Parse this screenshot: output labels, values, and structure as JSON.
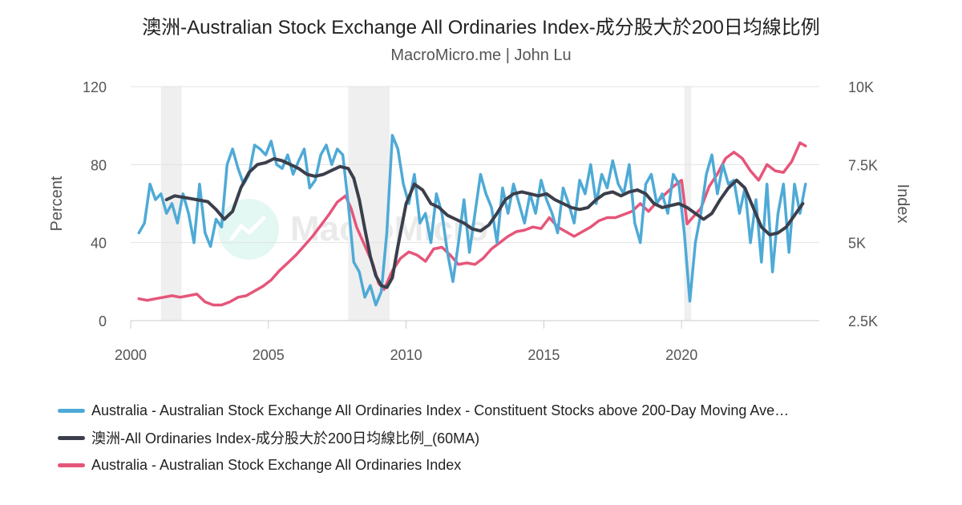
{
  "title": "澳洲-Australian Stock Exchange All Ordinaries Index-成分股大於200日均線比例",
  "subtitle": "MacroMicro.me | John Lu",
  "watermark": "MacroMicro",
  "chart_data": {
    "type": "line",
    "title": "澳洲-Australian Stock Exchange All Ordinaries Index-成分股大於200日均線比例",
    "subtitle": "MacroMicro.me | John Lu",
    "x_axis": {
      "min": 2000,
      "max": 2025,
      "ticks": [
        2000,
        2005,
        2010,
        2015,
        2020
      ]
    },
    "y_axis_left": {
      "label": "Percent",
      "min": 0,
      "max": 120,
      "ticks": [
        0,
        40,
        80,
        120
      ]
    },
    "y_axis_right": {
      "label": "Index",
      "min": 2500,
      "max": 10000,
      "ticks": [
        2500,
        5000,
        7500,
        10000
      ],
      "tick_labels": [
        "2.5K",
        "5K",
        "7.5K",
        "10K"
      ]
    },
    "grid": true,
    "legend_position": "bottom",
    "recession_bands": [
      [
        2001.1,
        2001.85
      ],
      [
        2007.9,
        2009.4
      ],
      [
        2020.1,
        2020.35
      ]
    ],
    "series": [
      {
        "name": "Australia - Australian Stock Exchange All Ordinaries Index - Constituent Stocks above 200-Day Moving Ave…",
        "color": "#4eaad6",
        "axis": "left",
        "x": [
          2000.3,
          2000.5,
          2000.7,
          2000.9,
          2001.1,
          2001.3,
          2001.5,
          2001.7,
          2001.9,
          2002.1,
          2002.3,
          2002.5,
          2002.7,
          2002.9,
          2003.1,
          2003.3,
          2003.5,
          2003.7,
          2003.9,
          2004.1,
          2004.3,
          2004.5,
          2004.7,
          2004.9,
          2005.1,
          2005.3,
          2005.5,
          2005.7,
          2005.9,
          2006.1,
          2006.3,
          2006.5,
          2006.7,
          2006.9,
          2007.1,
          2007.3,
          2007.5,
          2007.7,
          2007.9,
          2008.1,
          2008.3,
          2008.5,
          2008.7,
          2008.9,
          2009.1,
          2009.3,
          2009.5,
          2009.7,
          2009.9,
          2010.1,
          2010.3,
          2010.5,
          2010.7,
          2010.9,
          2011.1,
          2011.3,
          2011.5,
          2011.7,
          2011.9,
          2012.1,
          2012.3,
          2012.5,
          2012.7,
          2012.9,
          2013.1,
          2013.3,
          2013.5,
          2013.7,
          2013.9,
          2014.1,
          2014.3,
          2014.5,
          2014.7,
          2014.9,
          2015.1,
          2015.3,
          2015.5,
          2015.7,
          2015.9,
          2016.1,
          2016.3,
          2016.5,
          2016.7,
          2016.9,
          2017.1,
          2017.3,
          2017.5,
          2017.7,
          2017.9,
          2018.1,
          2018.3,
          2018.5,
          2018.7,
          2018.9,
          2019.1,
          2019.3,
          2019.5,
          2019.7,
          2019.9,
          2020.1,
          2020.3,
          2020.5,
          2020.7,
          2020.9,
          2021.1,
          2021.3,
          2021.5,
          2021.7,
          2021.9,
          2022.1,
          2022.3,
          2022.5,
          2022.7,
          2022.9,
          2023.1,
          2023.3,
          2023.5,
          2023.7,
          2023.9,
          2024.1,
          2024.3,
          2024.5
        ],
        "values": [
          45,
          50,
          70,
          62,
          65,
          55,
          60,
          50,
          65,
          55,
          40,
          70,
          45,
          38,
          52,
          48,
          80,
          88,
          78,
          70,
          75,
          90,
          88,
          85,
          92,
          80,
          78,
          85,
          75,
          82,
          88,
          68,
          72,
          85,
          90,
          80,
          88,
          85,
          60,
          30,
          25,
          12,
          18,
          8,
          15,
          45,
          95,
          88,
          70,
          60,
          75,
          50,
          55,
          40,
          65,
          55,
          35,
          20,
          40,
          62,
          35,
          55,
          75,
          65,
          58,
          40,
          68,
          55,
          70,
          60,
          50,
          65,
          55,
          72,
          62,
          55,
          45,
          68,
          60,
          50,
          72,
          65,
          80,
          60,
          75,
          68,
          82,
          70,
          65,
          80,
          50,
          40,
          70,
          75,
          60,
          65,
          55,
          75,
          70,
          45,
          10,
          40,
          55,
          75,
          85,
          65,
          80,
          70,
          72,
          55,
          68,
          40,
          62,
          30,
          70,
          25,
          55,
          70,
          35,
          70,
          55,
          70
        ],
        "note": "jagged weekly series, sampled"
      },
      {
        "name": "澳洲-All Ordinaries Index-成分股大於200日均線比例_(60MA)",
        "color": "#3b3f4c",
        "axis": "left",
        "x": [
          2001.3,
          2001.6,
          2002.0,
          2002.4,
          2002.8,
          2003.1,
          2003.4,
          2003.7,
          2004.0,
          2004.3,
          2004.6,
          2004.9,
          2005.2,
          2005.5,
          2005.8,
          2006.1,
          2006.4,
          2006.7,
          2007.0,
          2007.3,
          2007.6,
          2007.9,
          2008.1,
          2008.3,
          2008.5,
          2008.7,
          2008.9,
          2009.1,
          2009.3,
          2009.5,
          2009.7,
          2010.0,
          2010.3,
          2010.6,
          2010.9,
          2011.2,
          2011.5,
          2011.8,
          2012.1,
          2012.4,
          2012.7,
          2013.0,
          2013.3,
          2013.6,
          2013.9,
          2014.2,
          2014.5,
          2014.8,
          2015.1,
          2015.4,
          2015.7,
          2016.0,
          2016.3,
          2016.6,
          2016.9,
          2017.2,
          2017.5,
          2017.8,
          2018.1,
          2018.4,
          2018.7,
          2019.0,
          2019.3,
          2019.6,
          2019.9,
          2020.2,
          2020.5,
          2020.8,
          2021.1,
          2021.4,
          2021.7,
          2022.0,
          2022.3,
          2022.6,
          2022.9,
          2023.2,
          2023.5,
          2023.8,
          2024.1,
          2024.4
        ],
        "values": [
          62,
          64,
          63,
          62,
          61,
          57,
          52,
          56,
          68,
          76,
          80,
          81,
          83,
          82,
          80,
          78,
          75,
          74,
          75,
          77,
          79,
          78,
          73,
          62,
          47,
          33,
          23,
          18,
          17,
          22,
          38,
          60,
          70,
          67,
          60,
          58,
          54,
          52,
          50,
          47,
          46,
          49,
          55,
          62,
          65,
          66,
          65,
          64,
          65,
          62,
          60,
          58,
          57,
          58,
          62,
          65,
          66,
          64,
          66,
          67,
          65,
          60,
          58,
          59,
          60,
          58,
          55,
          52,
          55,
          62,
          68,
          72,
          68,
          58,
          48,
          44,
          45,
          48,
          54,
          60
        ],
        "note": "sampled"
      },
      {
        "name": "Australia - Australian Stock Exchange All Ordinaries Index",
        "color": "#e6557a",
        "axis": "right",
        "x": [
          2000.3,
          2000.6,
          2000.9,
          2001.2,
          2001.5,
          2001.8,
          2002.1,
          2002.4,
          2002.7,
          2003.0,
          2003.3,
          2003.6,
          2003.9,
          2004.2,
          2004.5,
          2004.8,
          2005.1,
          2005.4,
          2005.7,
          2006.0,
          2006.3,
          2006.6,
          2006.9,
          2007.2,
          2007.5,
          2007.8,
          2008.0,
          2008.2,
          2008.5,
          2008.8,
          2009.0,
          2009.2,
          2009.5,
          2009.8,
          2010.1,
          2010.4,
          2010.7,
          2011.0,
          2011.3,
          2011.6,
          2011.9,
          2012.2,
          2012.5,
          2012.8,
          2013.1,
          2013.4,
          2013.7,
          2014.0,
          2014.3,
          2014.6,
          2014.9,
          2015.2,
          2015.5,
          2015.8,
          2016.1,
          2016.4,
          2016.7,
          2017.0,
          2017.3,
          2017.6,
          2017.9,
          2018.2,
          2018.5,
          2018.8,
          2019.1,
          2019.4,
          2019.7,
          2020.0,
          2020.2,
          2020.4,
          2020.7,
          2021.0,
          2021.3,
          2021.6,
          2021.9,
          2022.2,
          2022.5,
          2022.8,
          2023.1,
          2023.4,
          2023.7,
          2024.0,
          2024.3,
          2024.5
        ],
        "values": [
          3200,
          3150,
          3200,
          3250,
          3300,
          3250,
          3300,
          3350,
          3100,
          3000,
          3000,
          3100,
          3250,
          3300,
          3450,
          3600,
          3800,
          4100,
          4350,
          4600,
          4900,
          5200,
          5550,
          5900,
          6300,
          6500,
          6100,
          5500,
          4900,
          4300,
          3700,
          3500,
          4100,
          4500,
          4700,
          4600,
          4400,
          4800,
          4850,
          4600,
          4300,
          4350,
          4300,
          4500,
          4800,
          5000,
          5200,
          5350,
          5400,
          5500,
          5450,
          5800,
          5500,
          5350,
          5200,
          5350,
          5500,
          5700,
          5800,
          5800,
          5900,
          6000,
          6250,
          6000,
          6300,
          6550,
          6800,
          7000,
          5600,
          5800,
          6100,
          6800,
          7200,
          7700,
          7900,
          7700,
          7300,
          7000,
          7500,
          7300,
          7250,
          7600,
          8200,
          8100
        ],
        "note": "sampled"
      }
    ]
  },
  "legend": [
    {
      "label": "Australia - Australian Stock Exchange All Ordinaries Index - Constituent Stocks above 200-Day Moving Ave…",
      "color": "#4eaad6"
    },
    {
      "label": "澳洲-All Ordinaries Index-成分股大於200日均線比例_(60MA)",
      "color": "#3b3f4c"
    },
    {
      "label": "Australia - Australian Stock Exchange All Ordinaries Index",
      "color": "#e6557a"
    }
  ]
}
